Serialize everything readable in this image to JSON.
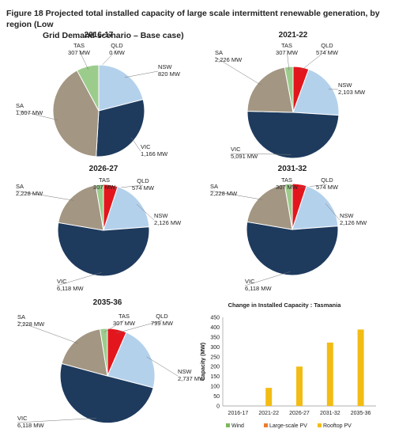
{
  "figure": {
    "title_line1": "Figure 18 Projected total installed capacity of large scale intermittent renewable generation, by region (Low",
    "title_line2": "Grid Demand scenario – Base case)"
  },
  "colors": {
    "QLD": "#e3161d",
    "NSW": "#b4d1ec",
    "VIC": "#1e3b5e",
    "SA": "#a39683",
    "TAS": "#9ccc8c",
    "bar": "#f3bc14"
  },
  "chart_data": [
    {
      "type": "pie",
      "title": "2016-17",
      "slices": [
        {
          "region": "QLD",
          "value": 0,
          "label": "0 MW"
        },
        {
          "region": "NSW",
          "value": 820,
          "label": "820 MW"
        },
        {
          "region": "VIC",
          "value": 1166,
          "label": "1,166 MW"
        },
        {
          "region": "SA",
          "value": 1607,
          "label": "1,607 MW"
        },
        {
          "region": "TAS",
          "value": 307,
          "label": "307 MW"
        }
      ]
    },
    {
      "type": "pie",
      "title": "2021-22",
      "slices": [
        {
          "region": "QLD",
          "value": 574,
          "label": "574 MW"
        },
        {
          "region": "NSW",
          "value": 2103,
          "label": "2,103 MW"
        },
        {
          "region": "VIC",
          "value": 5091,
          "label": "5,091 MW"
        },
        {
          "region": "SA",
          "value": 2226,
          "label": "2,226 MW"
        },
        {
          "region": "TAS",
          "value": 307,
          "label": "307 MW"
        }
      ]
    },
    {
      "type": "pie",
      "title": "2026-27",
      "slices": [
        {
          "region": "QLD",
          "value": 574,
          "label": "574 MW"
        },
        {
          "region": "NSW",
          "value": 2126,
          "label": "2,126 MW"
        },
        {
          "region": "VIC",
          "value": 6118,
          "label": "6,118 MW"
        },
        {
          "region": "SA",
          "value": 2228,
          "label": "2,228 MW"
        },
        {
          "region": "TAS",
          "value": 307,
          "label": "307 MW"
        }
      ]
    },
    {
      "type": "pie",
      "title": "2031-32",
      "slices": [
        {
          "region": "QLD",
          "value": 574,
          "label": "574 MW"
        },
        {
          "region": "NSW",
          "value": 2126,
          "label": "2,126 MW"
        },
        {
          "region": "VIC",
          "value": 6118,
          "label": "6,118 MW"
        },
        {
          "region": "SA",
          "value": 2228,
          "label": "2,228 MW"
        },
        {
          "region": "TAS",
          "value": 307,
          "label": "307 MW"
        }
      ]
    },
    {
      "type": "pie",
      "title": "2035-36",
      "slices": [
        {
          "region": "QLD",
          "value": 799,
          "label": "799 MW"
        },
        {
          "region": "NSW",
          "value": 2737,
          "label": "2,737 MW"
        },
        {
          "region": "VIC",
          "value": 6118,
          "label": "6,118 MW"
        },
        {
          "region": "SA",
          "value": 2228,
          "label": "2,228 MW"
        },
        {
          "region": "TAS",
          "value": 307,
          "label": "307 MW"
        }
      ]
    },
    {
      "type": "bar",
      "stacked": true,
      "title": "Change in Installed Capacity : Tasmania",
      "ylabel": "Capacity (MW)",
      "ylim": [
        0,
        450
      ],
      "yticks": [
        0,
        50,
        100,
        150,
        200,
        250,
        300,
        350,
        400,
        450
      ],
      "categories": [
        "2016-17",
        "2021-22",
        "2026-27",
        "2031-32",
        "2035-36"
      ],
      "grid": false,
      "legend_position": "bottom",
      "series": [
        {
          "name": "Wind",
          "color": "#7cba59",
          "values": [
            0,
            0,
            0,
            0,
            0
          ]
        },
        {
          "name": "Large-scale PV",
          "color": "#ed7d31",
          "values": [
            0,
            0,
            0,
            0,
            0
          ]
        },
        {
          "name": "Rooftop PV",
          "color": "#f3bc14",
          "values": [
            0,
            92,
            200,
            322,
            388
          ]
        }
      ]
    }
  ]
}
